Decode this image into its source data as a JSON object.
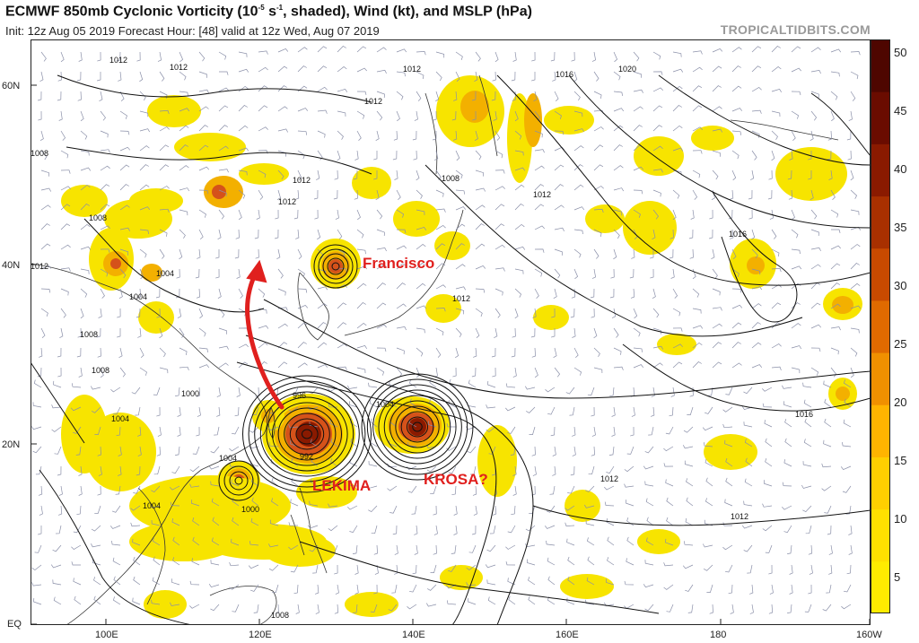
{
  "header": {
    "title_main": "ECMWF 850mb Cyclonic Vorticity (10",
    "title_exp": "-5",
    "title_unit": " s",
    "title_unit_exp": "-1",
    "title_rest": ", shaded), Wind (kt), and MSLP (hPa)",
    "subtitle": "Init: 12z Aug 05 2019   Forecast Hour: [48]   valid at 12z Wed, Aug 07 2019",
    "brand": "TROPICALTIDBITS.COM"
  },
  "axes": {
    "lat_labels": [
      "60N",
      "40N",
      "20N",
      "EQ"
    ],
    "lon_labels": [
      "100E",
      "120E",
      "140E",
      "160E",
      "180",
      "160W"
    ]
  },
  "colorbar": {
    "ticks": [
      "50",
      "45",
      "40",
      "35",
      "30",
      "25",
      "20",
      "15",
      "10",
      "5"
    ],
    "colors": [
      "#ffec00",
      "#ffe000",
      "#ffcf00",
      "#ffb400",
      "#f09000",
      "#e06a00",
      "#c84a00",
      "#a83000",
      "#8a1a00",
      "#6a0c00",
      "#4e0600"
    ]
  },
  "annotations": {
    "storms": [
      "Francisco",
      "LEKIMA",
      "KROSA?"
    ],
    "arrow_color": "#e0201e"
  },
  "isobar_labels": [
    "1012",
    "1012",
    "1012",
    "1016",
    "1020",
    "1012",
    "1008",
    "1012",
    "1008",
    "1012",
    "1012",
    "1008",
    "1012",
    "1004",
    "1004",
    "1016",
    "1008",
    "1008",
    "1012",
    "1000",
    "1004",
    "1004",
    "996",
    "1004",
    "992",
    "1000",
    "1004",
    "1016",
    "1012",
    "1012",
    "1008"
  ]
}
